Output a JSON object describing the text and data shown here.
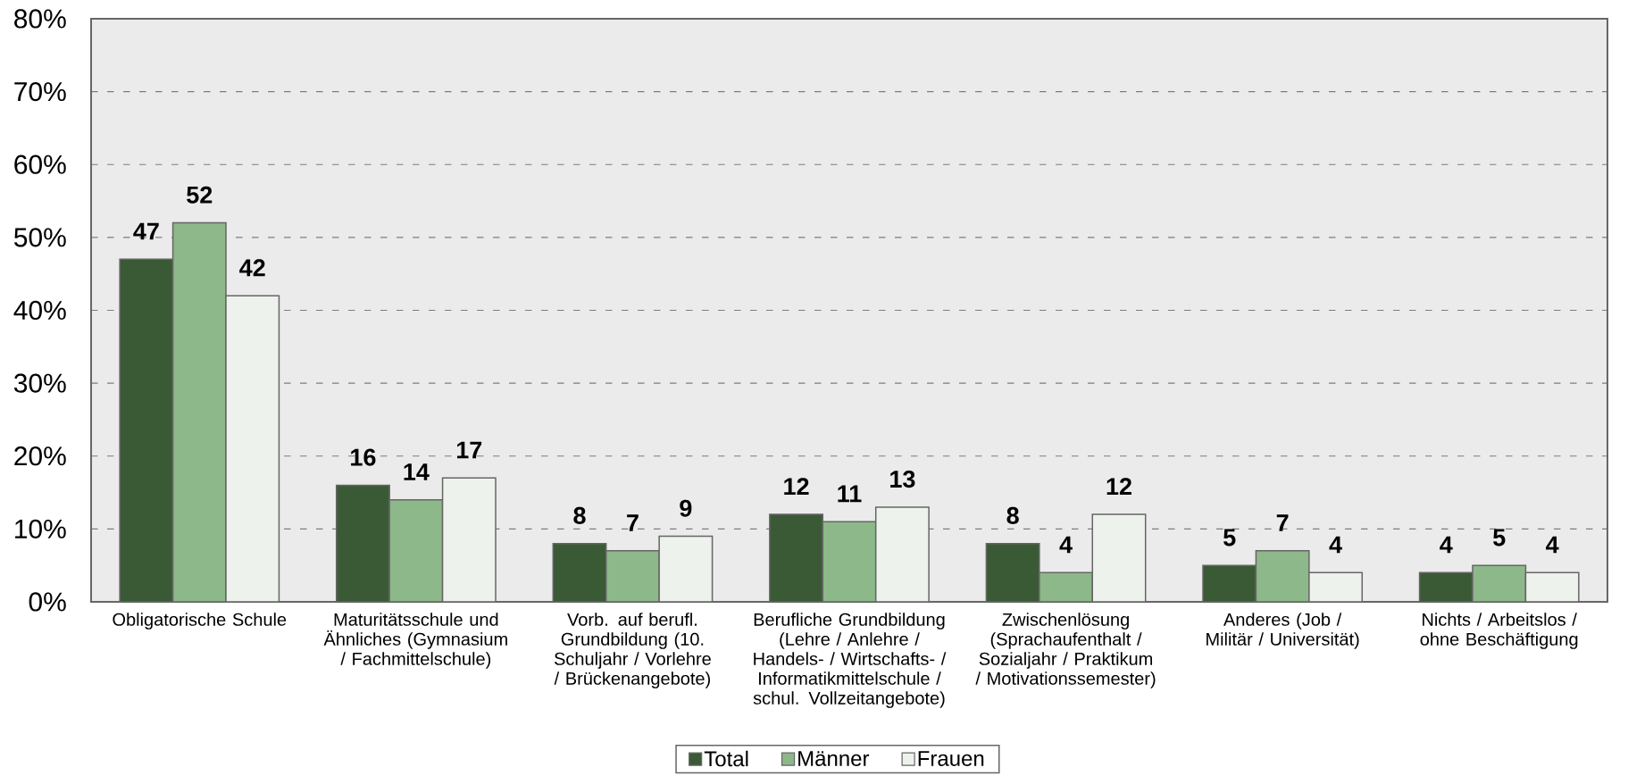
{
  "chart_data": {
    "type": "bar",
    "categories": [
      "Obligatorische Schule",
      "Maturitätsschule und Ähnliches (Gymnasium / Fachmittelschule)",
      "Vorb. auf berufl. Grundbildung (10. Schuljahr / Vorlehre / Brückenangebote)",
      "Berufliche Grundbildung (Lehre / Anlehre / Handels- / Wirtschafts- / Informatikmittelschule / schul. Vollzeitangebote)",
      "Zwischenlösung (Sprachaufenthalt / Sozialjahr / Praktikum / Motivationssemester)",
      "Anderes (Job / Militär / Universität)",
      "Nichts / Arbeitslos / ohne Beschäftigung"
    ],
    "series": [
      {
        "name": "Total",
        "color": "#3a5a35",
        "values": [
          47,
          16,
          8,
          12,
          8,
          5,
          4
        ]
      },
      {
        "name": "Männer",
        "color": "#8db889",
        "values": [
          52,
          14,
          7,
          11,
          4,
          7,
          5
        ]
      },
      {
        "name": "Frauen",
        "color": "#edf3ec",
        "values": [
          42,
          17,
          9,
          13,
          12,
          4,
          4
        ]
      }
    ],
    "ylim": [
      0,
      80
    ],
    "yticks": [
      {
        "value": 0,
        "label": "0%"
      },
      {
        "value": 10,
        "label": "10%"
      },
      {
        "value": 20,
        "label": "20%"
      },
      {
        "value": 30,
        "label": "30%"
      },
      {
        "value": 40,
        "label": "40%"
      },
      {
        "value": 50,
        "label": "50%"
      },
      {
        "value": 60,
        "label": "60%"
      },
      {
        "value": 70,
        "label": "70%"
      },
      {
        "value": 80,
        "label": "80%"
      }
    ],
    "grid": "y",
    "legend": "bottom",
    "data_labels": true
  }
}
